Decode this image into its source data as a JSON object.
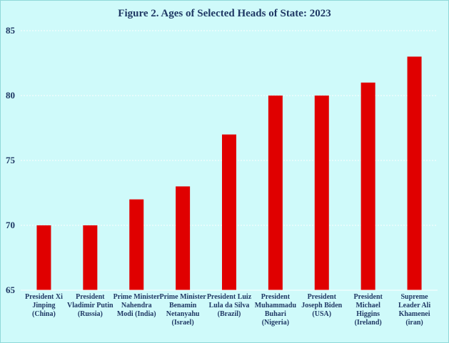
{
  "chart_data": {
    "type": "bar",
    "title": "Figure 2. Ages of Selected Heads of State: 2023",
    "xlabel": "",
    "ylabel": "",
    "ylim": [
      65,
      85
    ],
    "yticks": [
      "65",
      "70",
      "75",
      "80",
      "85"
    ],
    "grid": true,
    "bar_color": "#e00000",
    "background": "#cffafa",
    "categories": [
      "President Xi Jinping (China)",
      "President Vladimir Putin (Russia)",
      "Prime Minister Nahendra Modi (India)",
      "Prime Minister Benamin Netanyahu (Israel)",
      "President Luiz Lula da Silva (Brazil)",
      "President Muhammadu Buhari (Nigeria)",
      "President Joseph Biden (USA)",
      "President Michael Higgins (Ireland)",
      "Supreme Leader Ali Khamenei (iran)"
    ],
    "values": [
      70,
      70,
      72,
      73,
      77,
      80,
      80,
      81,
      83
    ]
  }
}
